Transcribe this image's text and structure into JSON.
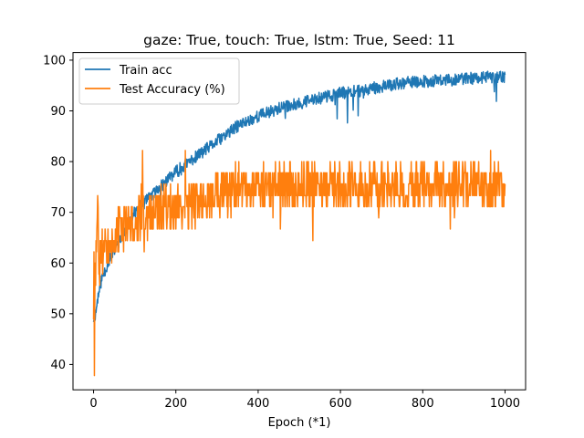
{
  "chart_data": {
    "type": "line",
    "title": "gaze: True, touch: True, lstm: True, Seed: 11",
    "xlabel": "Epoch (*1)",
    "ylabel": "",
    "xlim": [
      -50,
      1050
    ],
    "ylim": [
      35,
      101.5
    ],
    "xticks": [
      0,
      200,
      400,
      600,
      800,
      1000
    ],
    "yticks": [
      40,
      50,
      60,
      70,
      80,
      90,
      100
    ],
    "grid": false,
    "legend_position": "upper left",
    "series": [
      {
        "name": "Train acc",
        "color": "#1f77b4",
        "keypoints": {
          "x": [
            0,
            5,
            10,
            20,
            40,
            60,
            80,
            100,
            150,
            200,
            250,
            300,
            350,
            400,
            450,
            500,
            550,
            600,
            650,
            700,
            750,
            800,
            850,
            900,
            950,
            1000
          ],
          "y": [
            49,
            50,
            53,
            57,
            61,
            64,
            67,
            70,
            74,
            78,
            81,
            84,
            87,
            89,
            90.5,
            91.5,
            92.5,
            93.5,
            94,
            94.8,
            95.5,
            95.8,
            96,
            96.3,
            96.6,
            96.8
          ]
        },
        "noise_amplitude": 1.2
      },
      {
        "name": "Test Accuracy (%)",
        "color": "#ff7f0e",
        "keypoints": {
          "x": [
            0,
            2,
            4,
            6,
            8,
            10,
            20,
            40,
            60,
            100,
            150,
            200,
            250,
            300,
            400,
            500,
            600,
            700,
            800,
            900,
            1000
          ],
          "y": [
            50,
            60,
            38,
            55,
            62,
            58,
            62,
            64,
            66,
            68,
            70,
            71,
            72,
            74,
            75,
            75,
            75,
            75,
            75,
            75,
            75
          ]
        },
        "quantized_levels": [
          37.8,
          48.9,
          51.1,
          53.3,
          55.6,
          57.8,
          60,
          62.2,
          64.4,
          66.7,
          68.9,
          71.1,
          73.3,
          75.6,
          77.8,
          80,
          82.2,
          84.4,
          86.7
        ],
        "noise_amplitude": 4.5
      }
    ]
  }
}
